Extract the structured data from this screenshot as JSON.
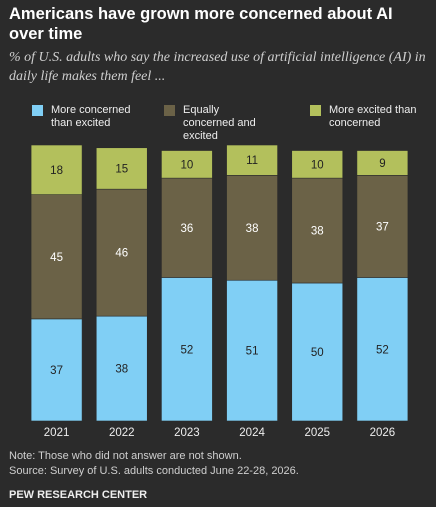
{
  "chart_data": {
    "type": "stacked-bar",
    "title": "Americans have grown more concerned about AI over time",
    "subtitle": "% of U.S. adults who say the increased use of artificial intelligence (AI) in daily life makes them feel ...",
    "categories": [
      "2021",
      "2022",
      "2023",
      "2024",
      "2025",
      "2026"
    ],
    "series": [
      {
        "name": "More concerned than excited",
        "color": "#80cff5",
        "values": [
          37,
          38,
          52,
          51,
          50,
          52
        ]
      },
      {
        "name": "Equally concerned and excited",
        "color": "#6b6247",
        "values": [
          45,
          46,
          36,
          38,
          38,
          37
        ]
      },
      {
        "name": "More excited than concerned",
        "color": "#b3c05c",
        "values": [
          18,
          15,
          10,
          11,
          10,
          9
        ]
      }
    ],
    "note": "Note: Those who did not answer are not shown.",
    "source": "Source: Survey of U.S. adults conducted June 22-28, 2026.",
    "organization": "PEW RESEARCH CENTER"
  }
}
